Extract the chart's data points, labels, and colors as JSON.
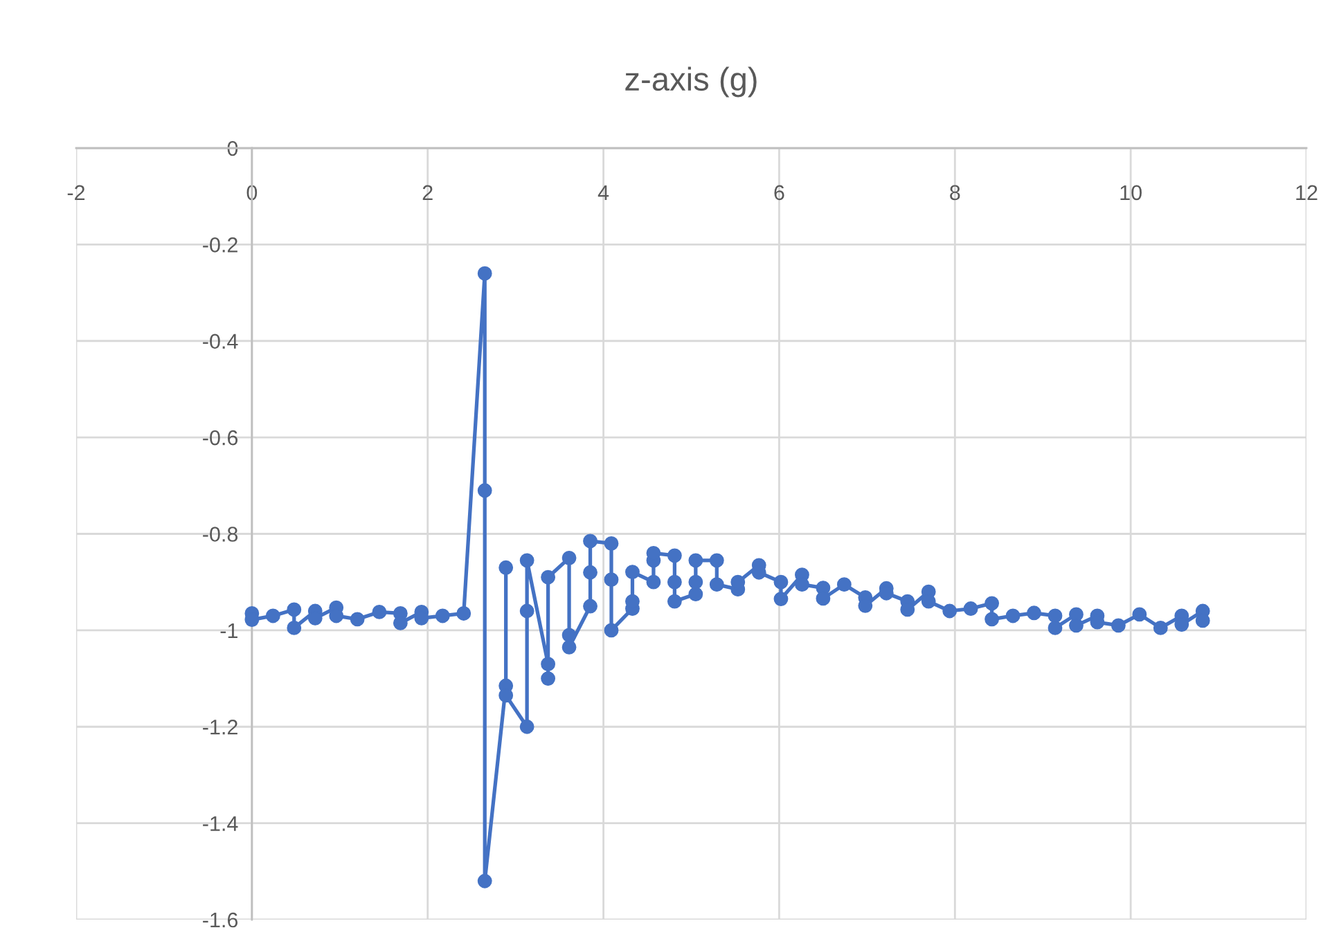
{
  "chart_data": {
    "type": "line",
    "title": "z-axis (g)",
    "x": [
      0,
      0,
      0.24,
      0.48,
      0.48,
      0.72,
      0.72,
      0.96,
      0.96,
      1.2,
      1.45,
      1.69,
      1.69,
      1.93,
      1.93,
      2.17,
      2.41,
      2.65,
      2.65,
      2.65,
      2.89,
      2.89,
      2.89,
      3.13,
      3.13,
      3.13,
      3.37,
      3.37,
      3.37,
      3.61,
      3.61,
      3.61,
      3.85,
      3.85,
      3.85,
      4.09,
      4.09,
      4.09,
      4.33,
      4.33,
      4.33,
      4.57,
      4.57,
      4.57,
      4.81,
      4.81,
      4.81,
      5.05,
      5.05,
      5.05,
      5.29,
      5.29,
      5.53,
      5.53,
      5.77,
      5.77,
      6.02,
      6.02,
      6.26,
      6.26,
      6.5,
      6.5,
      6.74,
      6.98,
      6.98,
      7.22,
      7.22,
      7.46,
      7.46,
      7.7,
      7.7,
      7.94,
      8.18,
      8.42,
      8.42,
      8.66,
      8.9,
      9.14,
      9.14,
      9.38,
      9.38,
      9.62,
      9.62,
      9.86,
      10.1,
      10.34,
      10.58,
      10.58,
      10.82,
      10.82
    ],
    "series": [
      {
        "color": "#4472c4",
        "values": [
          -0.965,
          -0.978,
          -0.97,
          -0.957,
          -0.995,
          -0.96,
          -0.975,
          -0.953,
          -0.97,
          -0.977,
          -0.962,
          -0.965,
          -0.985,
          -0.962,
          -0.975,
          -0.97,
          -0.965,
          -0.26,
          -0.71,
          -1.52,
          -1.115,
          -0.87,
          -1.135,
          -1.2,
          -0.96,
          -0.855,
          -1.07,
          -1.1,
          -0.89,
          -0.85,
          -1.01,
          -1.035,
          -0.95,
          -0.88,
          -0.815,
          -0.82,
          -0.895,
          -1.0,
          -0.955,
          -0.94,
          -0.879,
          -0.9,
          -0.855,
          -0.84,
          -0.845,
          -0.9,
          -0.94,
          -0.925,
          -0.9,
          -0.855,
          -0.855,
          -0.905,
          -0.915,
          -0.9,
          -0.865,
          -0.88,
          -0.9,
          -0.935,
          -0.885,
          -0.905,
          -0.912,
          -0.934,
          -0.905,
          -0.932,
          -0.949,
          -0.913,
          -0.923,
          -0.94,
          -0.957,
          -0.92,
          -0.94,
          -0.96,
          -0.955,
          -0.944,
          -0.977,
          -0.97,
          -0.964,
          -0.97,
          -0.995,
          -0.967,
          -0.99,
          -0.97,
          -0.983,
          -0.99,
          -0.967,
          -0.995,
          -0.97,
          -0.988,
          -0.96,
          -0.98
        ]
      }
    ],
    "xlim": [
      -2,
      12
    ],
    "xticks": [
      -2,
      0,
      2,
      4,
      6,
      8,
      10,
      12
    ],
    "ylim": [
      -1.6,
      0
    ],
    "yticks": [
      0,
      -0.2,
      -0.4,
      -0.6,
      -0.8,
      -1,
      -1.2,
      -1.4,
      -1.6
    ],
    "grid": true,
    "marker": "circle",
    "line_style": "solid",
    "legend": false
  }
}
